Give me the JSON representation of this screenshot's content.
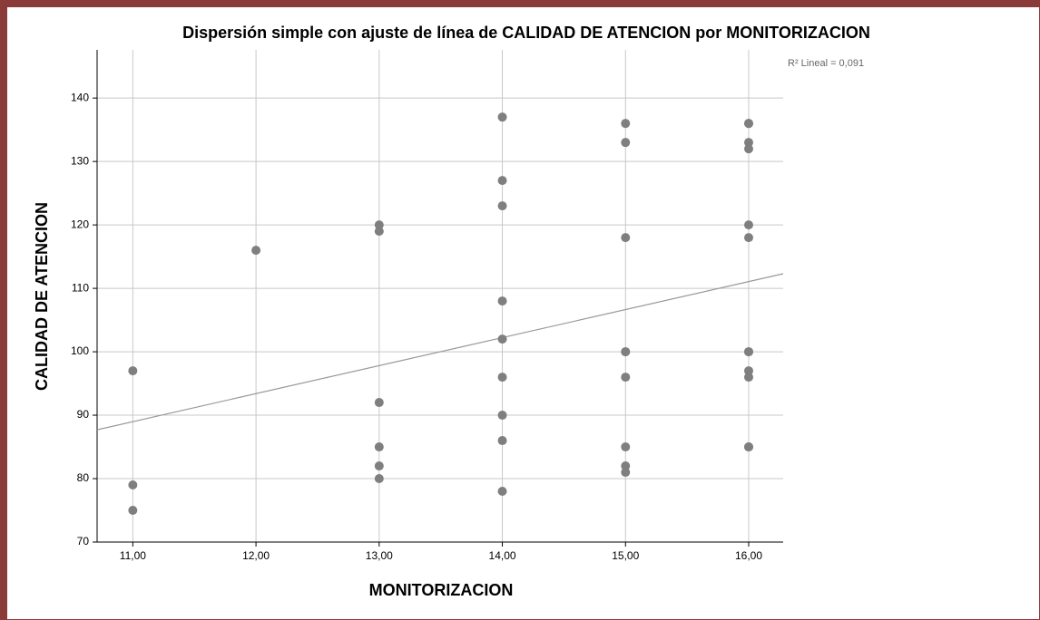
{
  "chart_data": {
    "type": "scatter",
    "title": "Dispersión simple con ajuste de línea de CALIDAD DE ATENCION por MONITORIZACION",
    "x_label": "MONITORIZACION",
    "y_label": "CALIDAD DE ATENCION",
    "annotation": "R² Lineal = 0,091",
    "x": [
      11,
      11,
      11,
      12,
      13,
      13,
      13,
      13,
      13,
      13,
      14,
      14,
      14,
      14,
      14,
      14,
      14,
      14,
      14,
      15,
      15,
      15,
      15,
      15,
      15,
      15,
      15,
      15,
      16,
      16,
      16,
      16,
      16,
      16,
      16,
      16,
      16,
      16,
      16,
      16
    ],
    "values": [
      97,
      79,
      75,
      116,
      120,
      119,
      92,
      85,
      82,
      80,
      137,
      127,
      123,
      108,
      102,
      96,
      90,
      86,
      78,
      136,
      133,
      118,
      100,
      100,
      96,
      85,
      82,
      81,
      136,
      136,
      133,
      132,
      120,
      118,
      100,
      100,
      97,
      96,
      85,
      85
    ],
    "color": "#7f7f7f",
    "fit_line": {
      "x": [
        10.71,
        16.28
      ],
      "values": [
        87.7,
        112.3
      ],
      "color": "#999999"
    },
    "xlim": [
      10.71,
      16.28
    ],
    "ylim": [
      70,
      147.6
    ],
    "xticks": [
      {
        "value": 11,
        "label": "11,00"
      },
      {
        "value": 12,
        "label": "12,00"
      },
      {
        "value": 13,
        "label": "13,00"
      },
      {
        "value": 14,
        "label": "14,00"
      },
      {
        "value": 15,
        "label": "15,00"
      },
      {
        "value": 16,
        "label": "16,00"
      }
    ],
    "yticks": [
      70,
      80,
      90,
      100,
      110,
      120,
      130,
      140
    ],
    "grid": true
  }
}
